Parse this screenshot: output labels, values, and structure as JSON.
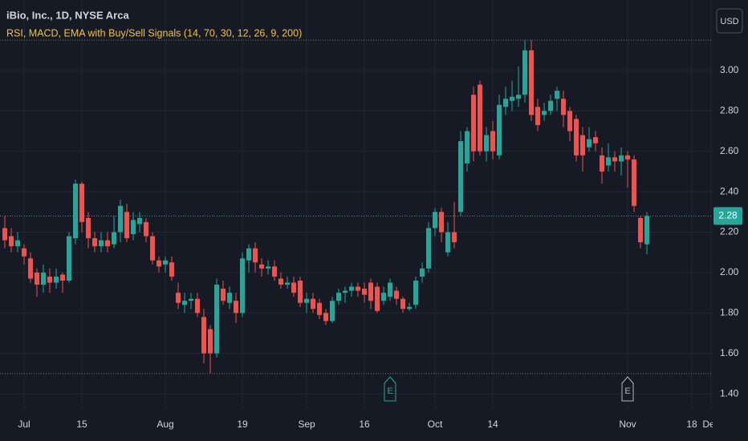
{
  "chart_data": {
    "type": "candlestick",
    "title": "iBio, Inc., 1D, NYSE Arca",
    "subtitle": "RSI, MACD, EMA with Buy/Sell Signals (14, 70, 30, 12, 26, 9, 200)",
    "currency": "USD",
    "categories": [
      null,
      null,
      null,
      "Jul",
      null,
      null,
      null,
      null,
      null,
      null,
      null,
      null,
      "15",
      null,
      null,
      null,
      null,
      null,
      null,
      null,
      null,
      null,
      null,
      null,
      null,
      "Aug",
      null,
      null,
      null,
      null,
      null,
      null,
      null,
      null,
      null,
      null,
      null,
      "19",
      null,
      null,
      null,
      null,
      null,
      null,
      null,
      null,
      null,
      "Sep",
      null,
      null,
      null,
      null,
      null,
      null,
      null,
      null,
      "16",
      null,
      null,
      null,
      null,
      null,
      null,
      null,
      null,
      null,
      null,
      "Oct",
      null,
      null,
      null,
      null,
      null,
      null,
      null,
      null,
      "14",
      null,
      null,
      null,
      null,
      null,
      null,
      null,
      null,
      null,
      null,
      null,
      null,
      null,
      null,
      null,
      null,
      null,
      null,
      null,
      null,
      "Nov",
      null,
      null,
      null,
      null,
      null,
      null,
      null,
      null,
      null,
      "18",
      null,
      null,
      "Dec"
    ],
    "open": [
      2.22,
      2.18,
      2.13,
      2.12,
      2.07,
      2.0,
      1.94,
      1.98,
      1.95,
      1.99,
      1.96,
      2.17,
      2.44,
      2.27,
      2.17,
      2.13,
      2.16,
      2.14,
      2.2,
      2.3,
      2.19,
      2.24,
      2.25,
      2.18,
      2.06,
      2.04,
      2.05,
      1.9,
      1.84,
      1.86,
      1.87,
      1.78,
      1.72,
      1.6,
      1.92,
      1.85,
      1.86,
      1.8,
      2.06,
      2.12,
      2.04,
      2.02,
      2.03,
      1.97,
      1.94,
      1.95,
      1.96,
      1.85,
      1.87,
      1.85,
      1.8,
      1.76,
      1.86,
      1.9,
      1.91,
      1.93,
      1.92,
      1.95,
      1.93,
      1.86,
      1.88,
      1.91,
      1.87,
      1.82,
      1.84,
      1.98,
      2.02,
      2.22,
      2.3,
      2.1,
      2.2,
      2.3,
      2.54,
      2.88,
      2.93,
      2.6,
      2.7,
      2.58,
      2.82,
      2.85,
      2.86,
      2.88,
      3.1,
      2.82,
      2.78,
      2.8,
      2.86,
      2.86,
      2.8,
      2.76,
      2.68,
      2.62,
      2.67,
      2.58,
      2.53,
      2.57,
      2.55,
      2.58,
      2.56,
      2.27,
      2.14,
      null,
      null,
      null,
      null,
      null,
      null,
      null,
      null,
      null,
      null
    ],
    "high": [
      2.28,
      2.22,
      2.2,
      2.14,
      2.1,
      2.02,
      2.04,
      2.02,
      2.02,
      2.0,
      2.2,
      2.46,
      2.45,
      2.3,
      2.2,
      2.2,
      2.2,
      2.28,
      2.36,
      2.34,
      2.3,
      2.3,
      2.27,
      2.2,
      2.08,
      2.08,
      2.08,
      1.95,
      1.9,
      1.9,
      1.9,
      1.82,
      1.74,
      1.97,
      1.96,
      1.93,
      1.9,
      2.1,
      2.14,
      2.15,
      2.07,
      2.06,
      2.06,
      2.0,
      1.98,
      1.98,
      1.98,
      1.9,
      1.9,
      1.87,
      1.82,
      1.88,
      1.92,
      1.93,
      1.95,
      1.95,
      1.95,
      1.97,
      1.95,
      1.93,
      1.97,
      1.93,
      1.88,
      1.85,
      1.98,
      2.05,
      2.25,
      2.32,
      2.32,
      2.25,
      2.35,
      2.7,
      2.72,
      2.92,
      2.95,
      2.72,
      2.75,
      2.88,
      2.92,
      2.95,
      3.02,
      3.15,
      3.15,
      2.86,
      2.84,
      2.88,
      2.92,
      2.9,
      2.82,
      2.78,
      2.72,
      2.72,
      2.7,
      2.62,
      2.64,
      2.6,
      2.62,
      2.6,
      2.58,
      2.28,
      2.3,
      null,
      null,
      null,
      null,
      null,
      null,
      null,
      null,
      null,
      null
    ],
    "low": [
      2.12,
      2.1,
      2.1,
      2.04,
      1.95,
      1.88,
      1.9,
      1.9,
      1.92,
      1.9,
      1.95,
      2.14,
      2.2,
      2.12,
      2.1,
      2.1,
      2.1,
      2.12,
      2.15,
      2.15,
      2.16,
      2.2,
      2.15,
      2.04,
      2.0,
      2.0,
      1.96,
      1.82,
      1.8,
      1.82,
      1.78,
      1.55,
      1.5,
      1.58,
      1.84,
      1.82,
      1.75,
      1.78,
      2.0,
      2.0,
      1.98,
      1.99,
      1.96,
      1.92,
      1.92,
      1.88,
      1.83,
      1.8,
      1.8,
      1.77,
      1.74,
      1.75,
      1.84,
      1.85,
      1.88,
      1.88,
      1.85,
      1.82,
      1.8,
      1.84,
      1.86,
      1.84,
      1.8,
      1.81,
      1.82,
      1.95,
      2.0,
      2.18,
      2.15,
      2.08,
      2.12,
      2.28,
      2.5,
      2.55,
      2.58,
      2.55,
      2.56,
      2.56,
      2.78,
      2.8,
      2.82,
      2.84,
      2.75,
      2.7,
      2.75,
      2.78,
      2.8,
      2.72,
      2.65,
      2.55,
      2.5,
      2.6,
      2.6,
      2.44,
      2.5,
      2.5,
      2.48,
      2.42,
      2.3,
      2.12,
      2.09,
      null,
      null,
      null,
      null,
      null,
      null,
      null,
      null,
      null,
      null
    ],
    "close": [
      2.16,
      2.13,
      2.16,
      2.08,
      1.97,
      1.94,
      2.0,
      1.95,
      1.98,
      1.96,
      2.18,
      2.44,
      2.25,
      2.17,
      2.13,
      2.16,
      2.13,
      2.2,
      2.33,
      2.17,
      2.26,
      2.27,
      2.18,
      2.06,
      2.03,
      2.06,
      1.98,
      1.85,
      1.86,
      1.87,
      1.8,
      1.6,
      1.6,
      1.94,
      1.86,
      1.9,
      1.8,
      2.07,
      2.12,
      2.05,
      2.02,
      2.03,
      1.98,
      1.94,
      1.95,
      1.9,
      1.85,
      1.87,
      1.82,
      1.79,
      1.76,
      1.86,
      1.9,
      1.91,
      1.93,
      1.91,
      1.89,
      1.86,
      1.81,
      1.9,
      1.95,
      1.87,
      1.82,
      1.83,
      1.96,
      2.02,
      2.22,
      2.3,
      2.2,
      2.2,
      2.15,
      2.65,
      2.7,
      2.6,
      2.6,
      2.68,
      2.6,
      2.83,
      2.86,
      2.87,
      2.88,
      3.1,
      2.78,
      2.73,
      2.8,
      2.85,
      2.9,
      2.78,
      2.7,
      2.58,
      2.58,
      2.66,
      2.64,
      2.5,
      2.57,
      2.55,
      2.58,
      2.56,
      2.33,
      2.15,
      2.28,
      null,
      null,
      null,
      null,
      null,
      null,
      null,
      null,
      null,
      null
    ],
    "up_color": "#26a69a",
    "down_color": "#ef5350",
    "last_price": 2.28,
    "earnings": {
      "label": "E",
      "at": [
        60,
        97
      ],
      "colors": [
        "#26a69a",
        "#b2b5be"
      ]
    },
    "ylim": [
      1.325,
      3.349
    ],
    "yticks": [
      {
        "value": 1.4,
        "label": "1.40"
      },
      {
        "value": 1.6,
        "label": "1.60"
      },
      {
        "value": 1.8,
        "label": "1.80"
      },
      {
        "value": 2.0,
        "label": "2.00"
      },
      {
        "value": 2.2,
        "label": "2.20"
      },
      {
        "value": 2.4,
        "label": "2.40"
      },
      {
        "value": 2.6,
        "label": "2.60"
      },
      {
        "value": 2.8,
        "label": "2.80"
      },
      {
        "value": 3.0,
        "label": "3.00"
      }
    ],
    "grid": true
  }
}
